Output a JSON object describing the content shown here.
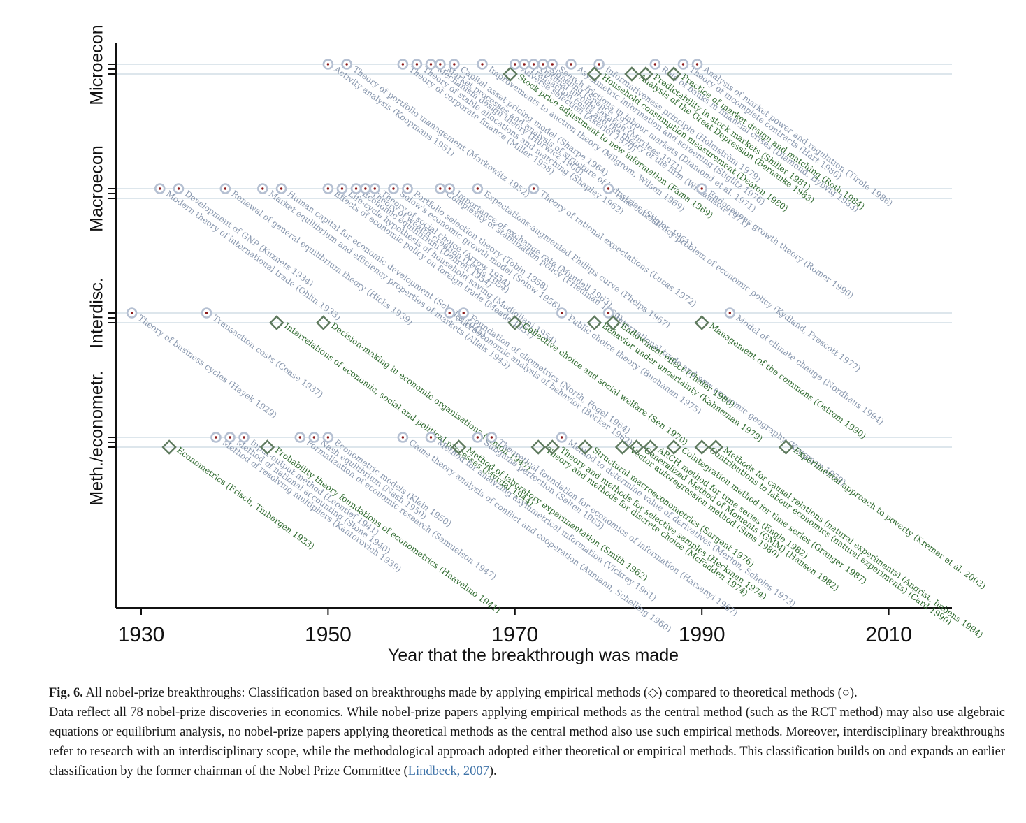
{
  "chart_data": {
    "type": "scatter",
    "xlabel": "Year that the breakthrough was made",
    "xlim": [
      1927,
      2016
    ],
    "xticks": [
      1930,
      1950,
      1970,
      1990,
      2010
    ],
    "yaxis": [
      "Microecon",
      "Macroecon",
      "Interdisc.",
      "Meth./econometr."
    ],
    "legend": {
      "empirical": "◇",
      "theoretical": "○"
    },
    "series": [
      {
        "name": "Microecon",
        "points": [
          {
            "x": 1950,
            "m": "t",
            "label": "Activity analysis (Koopmans 1951)"
          },
          {
            "x": 1952,
            "m": "t",
            "label": "Theory of portfolio management (Markowitz 1952)"
          },
          {
            "x": 1958,
            "m": "t",
            "label": "Theory of corporate finance (Miller 1958)"
          },
          {
            "x": 1959.5,
            "m": "t",
            "label": "Theory of stable allocations and matching (Shapley 1962)"
          },
          {
            "x": 1961,
            "m": "t",
            "label": "Mechanism design theory (Hurwicz 1960)"
          },
          {
            "x": 1962,
            "m": "t",
            "label": "Market processes and analysis of structure of industries (Stigler 1961)"
          },
          {
            "x": 1963.5,
            "m": "t",
            "label": "Capital asset pricing model (Sharpe 1964)"
          },
          {
            "x": 1966.5,
            "m": "t",
            "label": "Improvements to auction theory (Milgrom, Wilson 1969)"
          },
          {
            "x": 1969.5,
            "m": "e",
            "label": "Stock price adjustment to new information (Fama 1969)"
          },
          {
            "x": 1970,
            "m": "t",
            "label": "Adverse selection (Akerlof 1970)"
          },
          {
            "x": 1971,
            "m": "t",
            "label": "Transaction costs and the theory of the firm (Williamson 1971)"
          },
          {
            "x": 1972,
            "m": "t",
            "label": "Optimal income taxation (Mirrlees 1971)"
          },
          {
            "x": 1973,
            "m": "t",
            "label": "Signaling (Spence 1973)"
          },
          {
            "x": 1974,
            "m": "t",
            "label": "Search frictions in labour markets (Diamond et al. 1971)"
          },
          {
            "x": 1976,
            "m": "t",
            "label": "Asymmetric information and screening (Stiglitz 1976)"
          },
          {
            "x": 1979,
            "m": "t",
            "label": "Informativeness principle (Holmström 1979)"
          },
          {
            "x": 1978.5,
            "m": "e",
            "label": "Household consumption measurement (Deaton 1980)"
          },
          {
            "x": 1982.5,
            "m": "e",
            "label": "Analysis of the Great Depression (Bernanke 1983)"
          },
          {
            "x": 1984,
            "m": "e",
            "label": "Predictability in stock markets (Shiller 1981)"
          },
          {
            "x": 1985,
            "m": "t",
            "label": "Role of banks in financial crises (Diamond, Dybvig 1983)"
          },
          {
            "x": 1987,
            "m": "e",
            "label": "Practice of market design and matching (Roth 1984)"
          },
          {
            "x": 1988,
            "m": "t",
            "label": "Theory of incomplete contracts (Hart 1986)"
          },
          {
            "x": 1989.5,
            "m": "t",
            "label": "Analysis of market power and regulation (Tirole 1986)"
          }
        ]
      },
      {
        "name": "Macroecon",
        "points": [
          {
            "x": 1932,
            "m": "t",
            "label": "Modern theory of international trade (Ohlin 1933)"
          },
          {
            "x": 1934,
            "m": "t",
            "label": "Development of GNP (Kuznets 1934)"
          },
          {
            "x": 1939,
            "m": "t",
            "label": "Renewal of general equilibrium theory (Hicks 1939)"
          },
          {
            "x": 1943,
            "m": "t",
            "label": "Market equilibrium and efficiency properties of markets (Allais 1943)"
          },
          {
            "x": 1945,
            "m": "t",
            "label": "Human capital for economic development (Schultz 1945)"
          },
          {
            "x": 1950,
            "m": "t",
            "label": "Effects of economic policy on foreign trade (Meade 1951)"
          },
          {
            "x": 1951.5,
            "m": "t",
            "label": "Life-cycle hypothesis of household saving (Modigliani 1954)"
          },
          {
            "x": 1953,
            "m": "t",
            "label": "Economic equilibrium (Debreu 1954)"
          },
          {
            "x": 1954,
            "m": "t",
            "label": "Theory of wealth creation (Lewis 1954)"
          },
          {
            "x": 1955,
            "m": "t",
            "label": "Theory of social choice (Arrow 1954)"
          },
          {
            "x": 1957,
            "m": "t",
            "label": "Solow's economic growth model (Solow 1956)"
          },
          {
            "x": 1958.5,
            "m": "t",
            "label": "Portfolio selection theory (Tobin 1958)"
          },
          {
            "x": 1962,
            "m": "t",
            "label": "Complexity of stabilization policy (Friedman 1960)"
          },
          {
            "x": 1963,
            "m": "t",
            "label": "Importance of exchange rate (Mundell 1963)"
          },
          {
            "x": 1966,
            "m": "t",
            "label": "Expectations-augmented Phillips curve (Phelps 1967)"
          },
          {
            "x": 1972,
            "m": "t",
            "label": "Theory of rational expectations (Lucas 1972)"
          },
          {
            "x": 1980,
            "m": "t",
            "label": "Time consistency problem of economic policy (Kydland, Prescott 1977)"
          },
          {
            "x": 1990,
            "m": "t",
            "label": "Endogenous growth theory (Romer 1990)"
          }
        ]
      },
      {
        "name": "Interdisc.",
        "points": [
          {
            "x": 1929,
            "m": "t",
            "label": "Theory of business cycles (Hayek 1929)"
          },
          {
            "x": 1937,
            "m": "t",
            "label": "Transaction costs (Coase 1937)"
          },
          {
            "x": 1944.5,
            "m": "e",
            "label": "Interrelations of economic, social and political processes (Myrdal 1944)"
          },
          {
            "x": 1949.5,
            "m": "e",
            "label": "Decision-making in economic organisations (Simon 1947)"
          },
          {
            "x": 1963,
            "m": "t",
            "label": "Microeconomic analysis of behavior (Becker 1962)"
          },
          {
            "x": 1964.5,
            "m": "t",
            "label": "Foundation of cliometrics (North, Fogel 1964)"
          },
          {
            "x": 1970,
            "m": "e",
            "label": "Collective choice and social welfare (Sen 1970)"
          },
          {
            "x": 1975,
            "m": "t",
            "label": "Public choice theory (Buchanan 1975)"
          },
          {
            "x": 1978.5,
            "m": "e",
            "label": "Behavior under uncertainty (Kahneman 1979)"
          },
          {
            "x": 1980,
            "m": "t",
            "label": "International trade and new economic geography (Krugman 1979)"
          },
          {
            "x": 1980.5,
            "m": "e",
            "label": "Endowment effect (Thaler 1980)"
          },
          {
            "x": 1990,
            "m": "e",
            "label": "Management of the commons (Ostrom 1990)"
          },
          {
            "x": 1993,
            "m": "t",
            "label": "Model of climate change (Nordhaus 1994)"
          }
        ]
      },
      {
        "name": "Meth./econometr.",
        "points": [
          {
            "x": 1933,
            "m": "e",
            "label": "Econometrics (Frisch, Tinbergen 1933)"
          },
          {
            "x": 1938,
            "m": "t",
            "label": "Method of resolving multipliers (Kantorovich 1939)"
          },
          {
            "x": 1939.5,
            "m": "t",
            "label": "Method of national accounting (Stone 1940)"
          },
          {
            "x": 1941,
            "m": "t",
            "label": "Input-output method (Leontief 1941)"
          },
          {
            "x": 1943.5,
            "m": "e",
            "label": "Probability theory foundations of econometrics (Haavelmo 1941)"
          },
          {
            "x": 1947,
            "m": "t",
            "label": "Formalization of economic research (Samuelson 1947)"
          },
          {
            "x": 1948.5,
            "m": "t",
            "label": "Nash equilibrium (Nash 1950)"
          },
          {
            "x": 1950,
            "m": "t",
            "label": "Econometric models (Klein 1950)"
          },
          {
            "x": 1958,
            "m": "t",
            "label": "Game theory analysis of conflict and cooperation (Aumann, Schelling 1960)"
          },
          {
            "x": 1961,
            "m": "t",
            "label": "Method for analyzing asymmetrical information (Vickrey 1961)"
          },
          {
            "x": 1964,
            "m": "e",
            "label": "Method of laboratory experimentation (Smith 1962)"
          },
          {
            "x": 1966,
            "m": "t",
            "label": "Subgame perfection (Selten 1965)"
          },
          {
            "x": 1967.5,
            "m": "t",
            "label": "Theoretical foundation for economics of information (Harsanyi 1967)"
          },
          {
            "x": 1972.5,
            "m": "e",
            "label": "Theory and methods for discrete choice (McFadden 1974)"
          },
          {
            "x": 1974,
            "m": "e",
            "label": "Theory and methods for selective samples (Heckman 1974)"
          },
          {
            "x": 1975,
            "m": "t",
            "label": "Method to determine value of derivatives (Merton, Scholes 1973)"
          },
          {
            "x": 1977.5,
            "m": "e",
            "label": "Structural macroeconometrics (Sargent 1976)"
          },
          {
            "x": 1981.5,
            "m": "e",
            "label": "Vector autoregression method (Sims 1980)"
          },
          {
            "x": 1983,
            "m": "e",
            "label": "Generalized Method of Moments (GMM) (Hansen 1982)"
          },
          {
            "x": 1984.5,
            "m": "e",
            "label": "ARCH method for time series (Engle 1982)"
          },
          {
            "x": 1987,
            "m": "e",
            "label": "Cointegration method for time series (Granger 1987)"
          },
          {
            "x": 1990,
            "m": "e",
            "label": "Contributions to labour economics (natural experiments) (Card 1990)"
          },
          {
            "x": 1991.5,
            "m": "e",
            "label": "Methods for causal relations (natural experiments) (Angrist, Imbens 1994)"
          },
          {
            "x": 1999,
            "m": "e",
            "label": "Experimental approach to poverty (Kremer et al. 2003)"
          }
        ]
      }
    ]
  },
  "caption": {
    "fig_label": "Fig. 6.",
    "title": "All nobel-prize breakthroughs: Classification based on breakthroughs made by applying empirical methods (◇) compared to theoretical methods (○).",
    "body": "Data reflect all 78 nobel-prize discoveries in economics. While nobel-prize papers applying empirical methods as the central method (such as the RCT method) may also use algebraic equations or equilibrium analysis, no nobel-prize papers applying theoretical methods as the central method also use such empirical methods. Moreover, interdisciplinary breakthroughs refer to research with an interdisciplinary scope, while the methodological approach adopted either theoretical or empirical methods. This classification builds on and expands an earlier classification by the former chairman of the Nobel Prize Committee (",
    "citation": "Lindbeck, 2007",
    "body_end": ")."
  }
}
